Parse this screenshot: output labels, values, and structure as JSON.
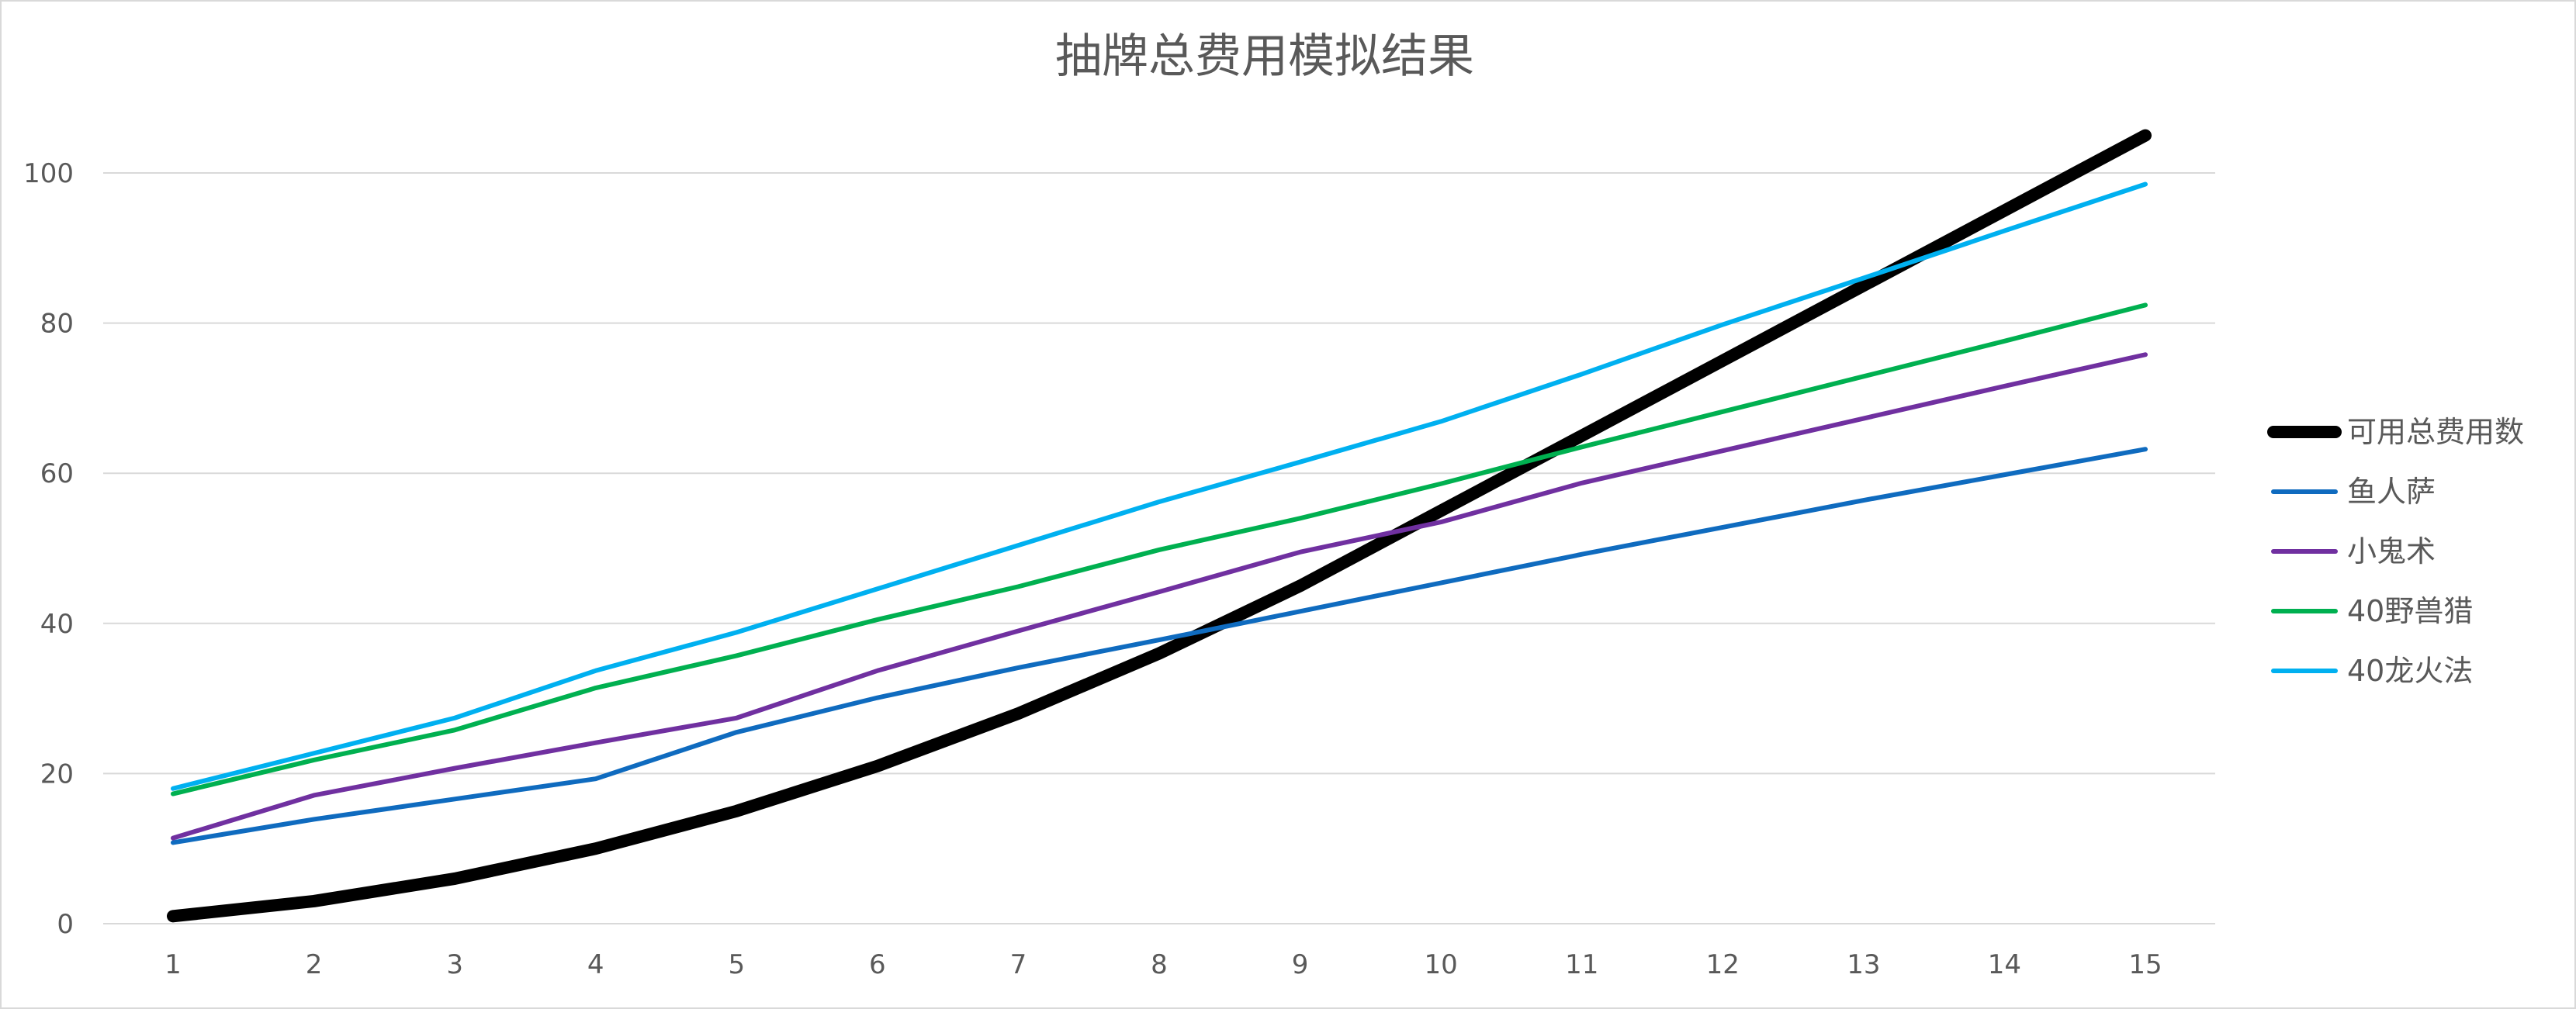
{
  "chart_data": {
    "type": "line",
    "title": "抽牌总费用模拟结果",
    "xlabel": "",
    "ylabel": "",
    "x": [
      1,
      2,
      3,
      4,
      5,
      6,
      7,
      8,
      9,
      10,
      11,
      12,
      13,
      14,
      15
    ],
    "ylim": [
      0,
      100
    ],
    "yticks": [
      0,
      20,
      40,
      60,
      80,
      100
    ],
    "grid": true,
    "legend_position": "right",
    "series": [
      {
        "name": "可用总费用数",
        "color": "#000000",
        "values": [
          1,
          3,
          6,
          10,
          15,
          21,
          28,
          36,
          45,
          55,
          65,
          75,
          85,
          95,
          105
        ]
      },
      {
        "name": "鱼人萨",
        "color": "#0f6bbf",
        "values": [
          10.8,
          13.9,
          16.6,
          19.3,
          25.5,
          30.1,
          34.1,
          37.8,
          41.6,
          45.4,
          49.2,
          52.8,
          56.4,
          59.8,
          63.2
        ]
      },
      {
        "name": "小鬼术",
        "color": "#7030a0",
        "values": [
          11.4,
          17.1,
          20.7,
          24.1,
          27.4,
          33.7,
          39.0,
          44.2,
          49.5,
          53.5,
          58.7,
          63.0,
          67.3,
          71.6,
          75.8
        ]
      },
      {
        "name": "40野兽猎",
        "color": "#00b050",
        "values": [
          17.3,
          21.8,
          25.8,
          31.4,
          35.7,
          40.5,
          44.9,
          49.8,
          54.0,
          58.6,
          63.5,
          68.2,
          72.9,
          77.6,
          82.4
        ]
      },
      {
        "name": "40龙火法",
        "color": "#00b0f0",
        "values": [
          18.0,
          22.7,
          27.4,
          33.7,
          38.8,
          44.6,
          50.4,
          56.2,
          61.5,
          66.9,
          73.2,
          79.8,
          86.0,
          92.3,
          98.5
        ]
      }
    ]
  }
}
